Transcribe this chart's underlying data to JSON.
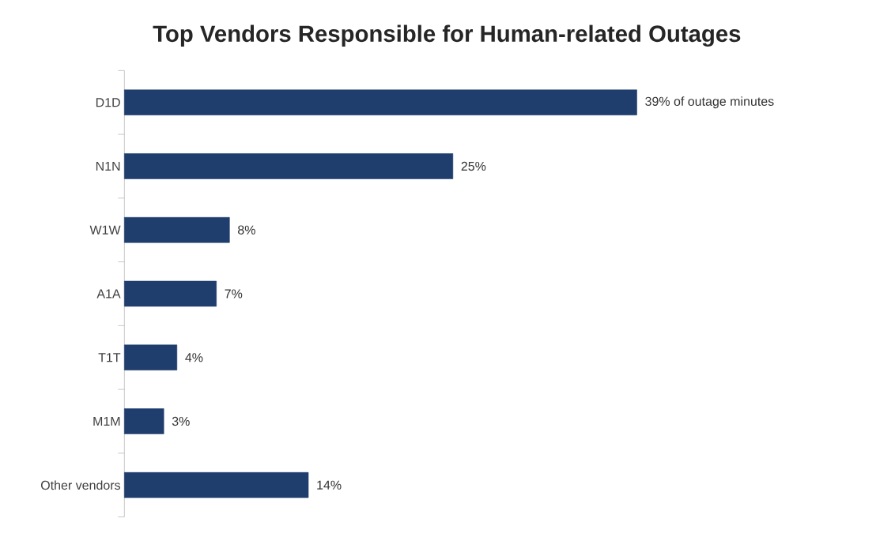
{
  "chart_data": {
    "type": "bar",
    "orientation": "horizontal",
    "title": "Top Vendors Responsible for Human-related Outages",
    "categories": [
      "D1D",
      "N1N",
      "W1W",
      "A1A",
      "T1T",
      "M1M",
      "Other vendors"
    ],
    "values": [
      39,
      25,
      8,
      7,
      4,
      3,
      14
    ],
    "value_labels": [
      "39% of outage minutes",
      "25%",
      "8%",
      "7%",
      "4%",
      "3%",
      "14%"
    ],
    "color": "#1f3d6d"
  }
}
